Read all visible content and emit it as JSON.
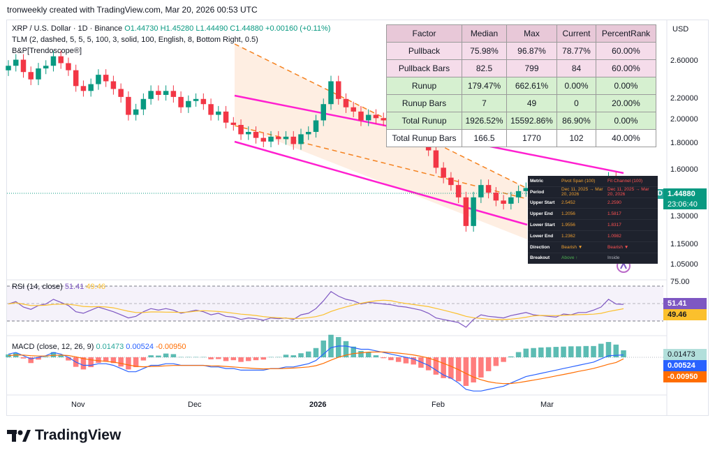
{
  "header": {
    "text": "tronweekly created with TradingView.com, Mar 20, 2026 00:53 UTC"
  },
  "legend": {
    "symbol": "XRP / U.S. Dollar · 1D · Binance",
    "ohlc": "O1.44730 H1.45280 L1.44490 C1.44880 +0.00160 (+0.11%)",
    "tlm": "TLM (2, dashed, 5, 5, 5, 100, 3, solid, 100, English, 8, Bottom Right, 0.5)",
    "bp": "B&P[Trendoscope®]",
    "rsi": "RSI (14, close)",
    "rsi_v1": "51.41",
    "rsi_v2": "49.46",
    "macd": "MACD (close, 12, 26, 9)",
    "macd_v1": "0.01473",
    "macd_v2": "0.00524",
    "macd_v3": "-0.00950"
  },
  "currency": "USD",
  "price_axis": [
    "2.60000",
    "2.20000",
    "2.00000",
    "1.80000",
    "1.60000",
    "1.30000",
    "1.15000",
    "1.05000"
  ],
  "rsi_axis": [
    "75.00"
  ],
  "price_tag": {
    "symbol": "XRPUSD",
    "price": "1.44880",
    "countdown": "23:06:40"
  },
  "rsi_tags": [
    "51.41",
    "49.46"
  ],
  "macd_tags": [
    "0.01473",
    "0.00524",
    "-0.00950"
  ],
  "time_axis": [
    "Nov",
    "Dec",
    "2026",
    "Feb",
    "Mar"
  ],
  "stats": {
    "headers": [
      "Factor",
      "Median",
      "Max",
      "Current",
      "PercentRank"
    ],
    "rows": [
      [
        "Pullback",
        "75.98%",
        "96.87%",
        "78.77%",
        "60.00%"
      ],
      [
        "Pullback Bars",
        "82.5",
        "799",
        "84",
        "60.00%"
      ],
      [
        "Runup",
        "179.47%",
        "662.61%",
        "0.00%",
        "0.00%"
      ],
      [
        "Runup Bars",
        "7",
        "49",
        "0",
        "20.00%"
      ],
      [
        "Total Runup",
        "1926.52%",
        "15592.86%",
        "86.90%",
        "0.00%"
      ],
      [
        "Total Runup Bars",
        "166.5",
        "1770",
        "102",
        "40.00%"
      ]
    ]
  },
  "channel_table": {
    "rows": [
      [
        "Metric",
        "Pivot Span (100)",
        "Fit Channel (100)"
      ],
      [
        "Period",
        "Dec 11, 2025 → Mar 20, 2026",
        "Dec 11, 2025 → Mar 20, 2026"
      ],
      [
        "Upper Start",
        "2.5452",
        "2.2590"
      ],
      [
        "Upper End",
        "1.2056",
        "1.5817"
      ],
      [
        "Lower Start",
        "1.9556",
        "1.8317"
      ],
      [
        "Lower End",
        "1.2362",
        "1.0982"
      ],
      [
        "Direction",
        "Bearish ▼",
        "Bearish ▼"
      ],
      [
        "Breakout",
        "Above ↑",
        "Inside"
      ]
    ]
  },
  "brand": "TradingView",
  "colors": {
    "up": "#089981",
    "down": "#f23645",
    "channel": "#ff1fd0",
    "dashed": "#f5821f",
    "rsi": "#7e57c2",
    "macd": "#2962ff",
    "signal": "#ff6d00"
  },
  "chart_data": {
    "type": "candlestick",
    "title": "XRP / U.S. Dollar · 1D · Binance",
    "x_labels": [
      "Nov",
      "Dec",
      "2026",
      "Feb",
      "Mar"
    ],
    "close_series_approx": [
      2.55,
      2.62,
      2.48,
      2.4,
      2.52,
      2.55,
      2.66,
      2.58,
      2.5,
      2.33,
      2.28,
      2.35,
      2.45,
      2.38,
      2.3,
      2.22,
      2.05,
      2.1,
      2.2,
      2.28,
      2.24,
      2.28,
      2.22,
      2.12,
      2.18,
      2.2,
      2.15,
      2.05,
      2.08,
      1.98,
      1.96,
      1.88,
      1.9,
      1.85,
      1.82,
      1.86,
      1.84,
      1.86,
      1.8,
      1.88,
      1.9,
      2.0,
      2.15,
      2.38,
      2.2,
      2.12,
      2.08,
      2.0,
      2.05,
      2.02,
      2.0,
      1.98,
      1.95,
      1.92,
      1.9,
      1.85,
      1.75,
      1.62,
      1.55,
      1.5,
      1.42,
      1.25,
      1.42,
      1.5,
      1.45,
      1.4,
      1.38,
      1.42,
      1.46,
      1.48,
      1.43,
      1.4,
      1.38,
      1.36,
      1.42,
      1.4,
      1.45,
      1.44,
      1.48,
      1.52,
      1.55,
      1.45,
      1.448
    ],
    "rsi_values_approx": [
      52,
      55,
      48,
      45,
      50,
      52,
      58,
      54,
      50,
      42,
      40,
      44,
      48,
      45,
      42,
      38,
      34,
      36,
      42,
      46,
      44,
      46,
      44,
      40,
      42,
      44,
      42,
      38,
      40,
      36,
      35,
      32,
      34,
      33,
      31,
      34,
      33,
      34,
      32,
      38,
      40,
      46,
      56,
      68,
      62,
      58,
      56,
      52,
      54,
      53,
      52,
      51,
      49,
      48,
      46,
      44,
      40,
      34,
      32,
      30,
      28,
      22,
      32,
      38,
      36,
      35,
      34,
      37,
      39,
      41,
      38,
      37,
      36,
      35,
      39,
      38,
      41,
      41,
      44,
      48,
      58,
      52,
      51.41
    ],
    "macd_values_approx": [
      0.02,
      0.03,
      0.01,
      -0.01,
      0.0,
      0.01,
      0.03,
      0.02,
      0.0,
      -0.03,
      -0.05,
      -0.05,
      -0.04,
      -0.04,
      -0.05,
      -0.07,
      -0.09,
      -0.09,
      -0.07,
      -0.05,
      -0.05,
      -0.04,
      -0.04,
      -0.05,
      -0.05,
      -0.05,
      -0.05,
      -0.06,
      -0.06,
      -0.07,
      -0.07,
      -0.08,
      -0.08,
      -0.08,
      -0.08,
      -0.07,
      -0.07,
      -0.06,
      -0.06,
      -0.05,
      -0.04,
      -0.02,
      0.02,
      0.06,
      0.07,
      0.07,
      0.06,
      0.05,
      0.05,
      0.04,
      0.03,
      0.02,
      0.01,
      0.0,
      -0.01,
      -0.03,
      -0.05,
      -0.08,
      -0.11,
      -0.13,
      -0.16,
      -0.2,
      -0.21,
      -0.21,
      -0.2,
      -0.19,
      -0.18,
      -0.16,
      -0.14,
      -0.12,
      -0.11,
      -0.1,
      -0.09,
      -0.08,
      -0.07,
      -0.06,
      -0.05,
      -0.04,
      -0.03,
      -0.01,
      0.01,
      0.012,
      0.01473
    ],
    "signal_values_approx": [
      0.01,
      0.015,
      0.014,
      0.01,
      0.008,
      0.008,
      0.012,
      0.014,
      0.011,
      0.003,
      -0.008,
      -0.016,
      -0.021,
      -0.025,
      -0.03,
      -0.038,
      -0.048,
      -0.056,
      -0.059,
      -0.057,
      -0.056,
      -0.053,
      -0.051,
      -0.051,
      -0.051,
      -0.051,
      -0.051,
      -0.053,
      -0.054,
      -0.057,
      -0.06,
      -0.064,
      -0.067,
      -0.07,
      -0.072,
      -0.071,
      -0.071,
      -0.069,
      -0.067,
      -0.064,
      -0.06,
      -0.052,
      -0.038,
      -0.018,
      0.0,
      0.014,
      0.023,
      0.028,
      0.032,
      0.033,
      0.033,
      0.03,
      0.026,
      0.021,
      0.015,
      0.006,
      -0.005,
      -0.02,
      -0.038,
      -0.056,
      -0.077,
      -0.101,
      -0.123,
      -0.14,
      -0.152,
      -0.16,
      -0.164,
      -0.163,
      -0.158,
      -0.15,
      -0.142,
      -0.134,
      -0.125,
      -0.116,
      -0.107,
      -0.098,
      -0.088,
      -0.079,
      -0.069,
      -0.057,
      -0.043,
      -0.032,
      -0.0095
    ],
    "price_ylim": [
      1.0,
      2.8
    ]
  }
}
